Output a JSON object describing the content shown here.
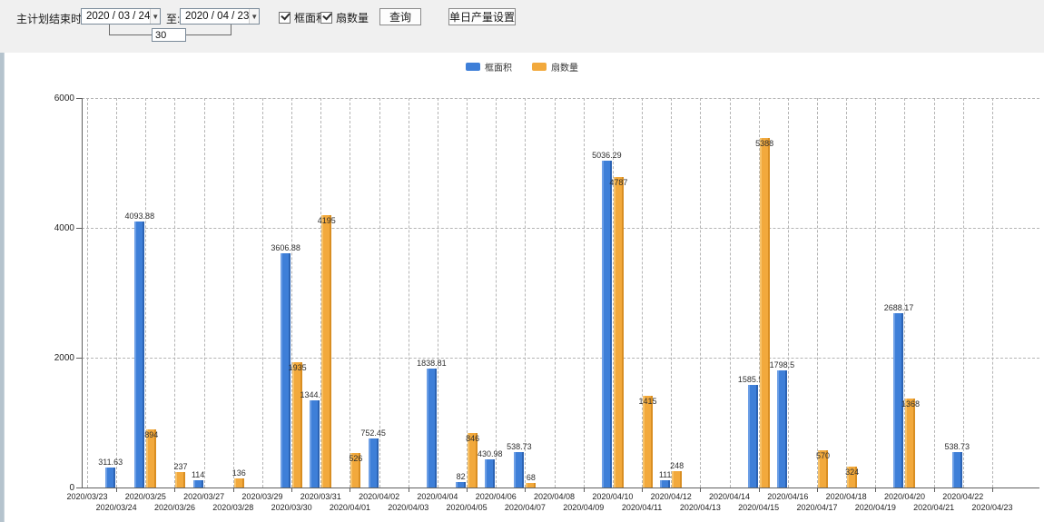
{
  "toolbar": {
    "end_time_label": "主计划结束时间:",
    "date_from": "2020 / 03 / 24",
    "to_label": "至:",
    "date_to": "2020 / 04 / 23",
    "interval_days": "30",
    "checkbox_area_label": "框面积",
    "checkbox_fans_label": "扇数量",
    "query_button_label": "查询",
    "daily_output_button_label": "单日产量设置"
  },
  "chart_data": {
    "type": "bar",
    "title": "",
    "xlabel": "",
    "ylabel": "",
    "ylim": [
      0,
      6000
    ],
    "yticks": [
      0,
      2000,
      4000,
      6000
    ],
    "grid": true,
    "legend_position": "top-center",
    "categories": [
      "2020/03/23",
      "2020/03/24",
      "2020/03/25",
      "2020/03/26",
      "2020/03/27",
      "2020/03/28",
      "2020/03/29",
      "2020/03/30",
      "2020/03/31",
      "2020/04/01",
      "2020/04/02",
      "2020/04/03",
      "2020/04/04",
      "2020/04/05",
      "2020/04/06",
      "2020/04/07",
      "2020/04/08",
      "2020/04/09",
      "2020/04/10",
      "2020/04/11",
      "2020/04/12",
      "2020/04/13",
      "2020/04/14",
      "2020/04/15",
      "2020/04/16",
      "2020/04/17",
      "2020/04/18",
      "2020/04/19",
      "2020/04/20",
      "2020/04/21",
      "2020/04/22",
      "2020/04/23"
    ],
    "series": [
      {
        "name": "框面积",
        "color": "#3e7fd8",
        "values": [
          null,
          311.63,
          4093.88,
          null,
          114,
          null,
          null,
          3606.88,
          1344.95,
          null,
          752.45,
          null,
          1838.81,
          82,
          430.98,
          538.73,
          null,
          null,
          5036.29,
          null,
          111,
          null,
          null,
          1585.96,
          1798.5,
          null,
          null,
          null,
          2688.17,
          null,
          538.73,
          null
        ]
      },
      {
        "name": "扇数量",
        "color": "#f2a93c",
        "values": [
          null,
          null,
          894,
          237,
          null,
          136,
          null,
          1935,
          4195,
          526,
          null,
          null,
          null,
          846,
          null,
          68,
          null,
          null,
          4787,
          1415,
          248,
          null,
          null,
          5388,
          null,
          570,
          324,
          null,
          1368,
          null,
          null,
          null
        ]
      }
    ]
  }
}
